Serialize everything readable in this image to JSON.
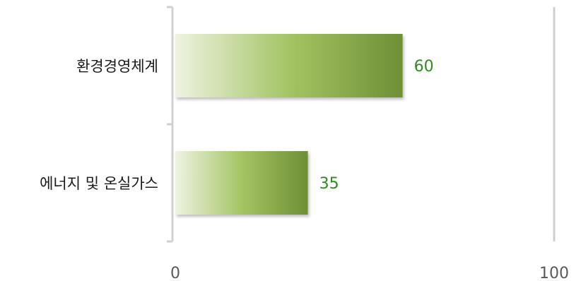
{
  "chart_data": {
    "type": "bar",
    "orientation": "horizontal",
    "categories": [
      "환경경영체계",
      "에너지 및 온실가스"
    ],
    "values": [
      60,
      35
    ],
    "xlim": [
      0,
      100
    ],
    "xticks": [
      0,
      100
    ],
    "xtick_labels": [
      "0",
      "100"
    ],
    "data_labels": [
      "60",
      "35"
    ],
    "title": "",
    "xlabel": "",
    "ylabel": "",
    "grid": false,
    "legend": "none",
    "colors": {
      "bar_gradient_start": "#eef3e2",
      "bar_gradient_mid": "#a4c464",
      "bar_gradient_end": "#6f8f35",
      "data_label": "#2e8b1f",
      "axis": "#d0d0d0"
    }
  }
}
